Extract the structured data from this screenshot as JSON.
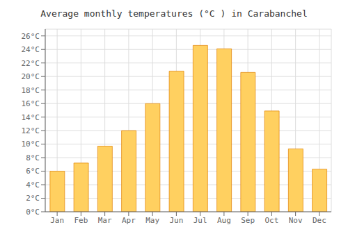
{
  "chart_data": {
    "type": "bar",
    "title": "Average monthly temperatures (°C ) in Carabanchel",
    "categories": [
      "Jan",
      "Feb",
      "Mar",
      "Apr",
      "May",
      "Jun",
      "Jul",
      "Aug",
      "Sep",
      "Oct",
      "Nov",
      "Dec"
    ],
    "values": [
      6.0,
      7.2,
      9.7,
      12.0,
      16.0,
      20.8,
      24.6,
      24.1,
      20.6,
      14.9,
      9.3,
      6.3
    ],
    "color": "#FFD060",
    "ylim": [
      0,
      27
    ],
    "yticks": [
      {
        "value": 0,
        "label": "0°C"
      },
      {
        "value": 2,
        "label": "2°C"
      },
      {
        "value": 4,
        "label": "4°C"
      },
      {
        "value": 6,
        "label": "6°C"
      },
      {
        "value": 8,
        "label": "8°C"
      },
      {
        "value": 10,
        "label": "10°C"
      },
      {
        "value": 12,
        "label": "12°C"
      },
      {
        "value": 14,
        "label": "14°C"
      },
      {
        "value": 16,
        "label": "16°C"
      },
      {
        "value": 18,
        "label": "18°C"
      },
      {
        "value": 20,
        "label": "20°C"
      },
      {
        "value": 22,
        "label": "22°C"
      },
      {
        "value": 24,
        "label": "24°C"
      },
      {
        "value": 26,
        "label": "26°C"
      }
    ],
    "grid": true
  }
}
